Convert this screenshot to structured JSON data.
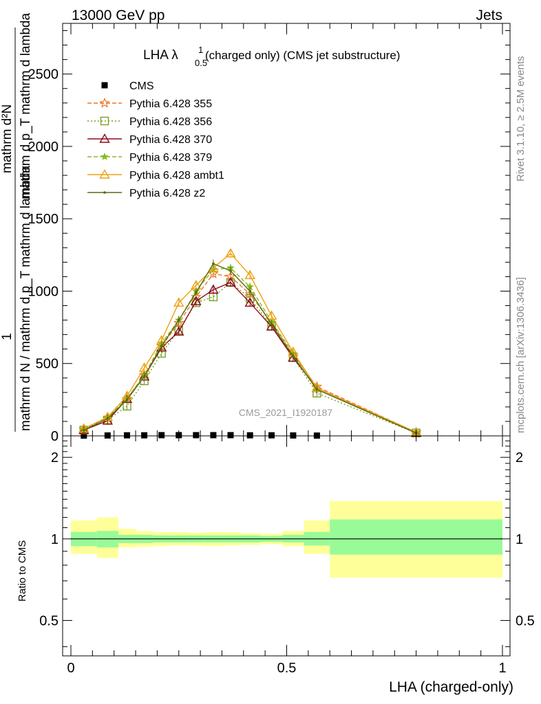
{
  "header": {
    "left": "13000 GeV pp",
    "right": "Jets"
  },
  "side_labels": {
    "rivet": "Rivet 3.1.10, ≥ 2.5M events",
    "mcplots": "mcplots.cern.ch [arXiv:1306.3436]"
  },
  "watermark": "CMS_2021_I1920187",
  "chart_data": [
    {
      "type": "line",
      "title_main": "LHA λ",
      "title_sup": "1",
      "title_sub": "0.5",
      "title_rest": " (charged only) (CMS jet substructure)",
      "xlabel": "",
      "ylabel_main": "mathrm d N / mathrm d p_T mathrm d lambda",
      "ylabel_numer": "mathrm d²N",
      "ylabel_denom": "mathrm d p_T mathrm d lambda",
      "ylabel_frac": "1",
      "xlim": [
        0,
        1
      ],
      "ylim": [
        0,
        2850
      ],
      "y_ticks": [
        0,
        500,
        1000,
        1500,
        2000,
        2500
      ],
      "y_tick_labels": [
        "0",
        "500",
        "1000",
        "1500",
        "2000",
        "2500"
      ],
      "legend_position": "top-left",
      "series": [
        {
          "name": "CMS",
          "color": "#000000",
          "marker": "square-filled",
          "dash": "none",
          "x": [
            0.03,
            0.085,
            0.13,
            0.17,
            0.21,
            0.25,
            0.29,
            0.33,
            0.37,
            0.415,
            0.465,
            0.515,
            0.57
          ],
          "y": [
            2,
            3,
            4,
            4,
            5,
            5,
            5,
            5,
            5,
            4,
            4,
            3,
            2
          ]
        },
        {
          "name": "Pythia 6.428 355",
          "color": "#ee7722",
          "marker": "star-open",
          "dash": "6,3",
          "x": [
            0.03,
            0.085,
            0.13,
            0.17,
            0.21,
            0.25,
            0.29,
            0.33,
            0.37,
            0.415,
            0.465,
            0.515,
            0.57,
            0.8
          ],
          "y": [
            45,
            120,
            255,
            420,
            620,
            780,
            960,
            1120,
            1100,
            980,
            780,
            560,
            340,
            25
          ]
        },
        {
          "name": "Pythia 6.428 356",
          "color": "#77a022",
          "marker": "square-open",
          "dash": "2,3",
          "x": [
            0.03,
            0.085,
            0.13,
            0.17,
            0.21,
            0.25,
            0.29,
            0.33,
            0.37,
            0.415,
            0.465,
            0.515,
            0.57,
            0.8
          ],
          "y": [
            40,
            110,
            205,
            380,
            570,
            730,
            920,
            960,
            1060,
            950,
            760,
            540,
            295,
            20
          ]
        },
        {
          "name": "Pythia 6.428 370",
          "color": "#8b0a1a",
          "marker": "triangle-open",
          "dash": "none",
          "x": [
            0.03,
            0.085,
            0.13,
            0.17,
            0.21,
            0.25,
            0.29,
            0.33,
            0.37,
            0.415,
            0.465,
            0.515,
            0.57,
            0.8
          ],
          "y": [
            40,
            105,
            255,
            410,
            610,
            720,
            930,
            1010,
            1060,
            920,
            755,
            540,
            330,
            20
          ]
        },
        {
          "name": "Pythia 6.428 379",
          "color": "#88bb22",
          "marker": "star-filled",
          "dash": "6,3",
          "x": [
            0.03,
            0.085,
            0.13,
            0.17,
            0.21,
            0.25,
            0.29,
            0.33,
            0.37,
            0.415,
            0.465,
            0.515,
            0.57,
            0.8
          ],
          "y": [
            45,
            125,
            260,
            420,
            640,
            800,
            1000,
            1150,
            1160,
            1030,
            790,
            570,
            330,
            25
          ]
        },
        {
          "name": "Pythia 6.428 ambt1",
          "color": "#eea010",
          "marker": "triangle-open",
          "dash": "none",
          "x": [
            0.03,
            0.085,
            0.13,
            0.17,
            0.21,
            0.25,
            0.29,
            0.33,
            0.37,
            0.415,
            0.465,
            0.515,
            0.57,
            0.8
          ],
          "y": [
            50,
            130,
            275,
            470,
            660,
            920,
            1040,
            1160,
            1260,
            1110,
            830,
            580,
            330,
            25
          ]
        },
        {
          "name": "Pythia 6.428 z2",
          "color": "#556b10",
          "marker": "dot",
          "dash": "none",
          "x": [
            0.03,
            0.085,
            0.13,
            0.17,
            0.21,
            0.25,
            0.29,
            0.33,
            0.37,
            0.415,
            0.465,
            0.515,
            0.57,
            0.8
          ],
          "y": [
            40,
            120,
            250,
            410,
            620,
            800,
            990,
            1190,
            1140,
            1000,
            770,
            550,
            320,
            20
          ]
        }
      ]
    },
    {
      "type": "area",
      "xlabel": "LHA (charged-only)",
      "ylabel": "Ratio to CMS",
      "xlim": [
        -0.02,
        1.02
      ],
      "ylim": [
        0.37,
        2.4
      ],
      "y_scale": "log",
      "y_ticks": [
        0.5,
        1,
        2
      ],
      "y_tick_labels": [
        "0.5",
        "1",
        "2"
      ],
      "x_ticks": [
        0,
        0.5,
        1
      ],
      "x_tick_labels": [
        "0",
        "0.5",
        "1"
      ],
      "reference": 1,
      "bands": {
        "edges": [
          0.0,
          0.06,
          0.11,
          0.15,
          0.19,
          0.23,
          0.27,
          0.31,
          0.35,
          0.39,
          0.44,
          0.49,
          0.54,
          0.6,
          1.0
        ],
        "stat_low": [
          0.94,
          0.93,
          0.965,
          0.965,
          0.97,
          0.97,
          0.97,
          0.97,
          0.97,
          0.97,
          0.975,
          0.97,
          0.945,
          0.875
        ],
        "stat_high": [
          1.06,
          1.07,
          1.035,
          1.035,
          1.03,
          1.03,
          1.03,
          1.03,
          1.03,
          1.03,
          1.025,
          1.035,
          1.06,
          1.18
        ],
        "total_low": [
          0.88,
          0.85,
          0.93,
          0.935,
          0.94,
          0.945,
          0.945,
          0.94,
          0.945,
          0.95,
          0.955,
          0.94,
          0.88,
          0.72
        ],
        "total_high": [
          1.17,
          1.2,
          1.09,
          1.07,
          1.06,
          1.06,
          1.055,
          1.06,
          1.06,
          1.05,
          1.045,
          1.07,
          1.17,
          1.38
        ],
        "stat_color": "#98fb98",
        "total_color": "#ffff99"
      }
    }
  ]
}
